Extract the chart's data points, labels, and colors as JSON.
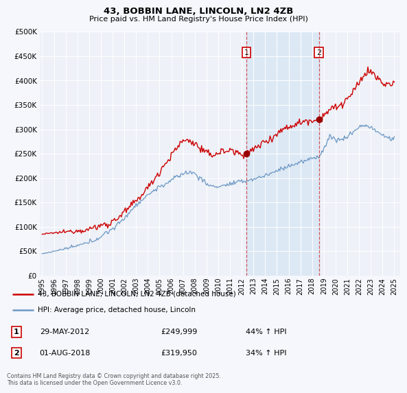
{
  "title_line1": "43, BOBBIN LANE, LINCOLN, LN2 4ZB",
  "title_line2": "Price paid vs. HM Land Registry's House Price Index (HPI)",
  "ytick_values": [
    0,
    50000,
    100000,
    150000,
    200000,
    250000,
    300000,
    350000,
    400000,
    450000,
    500000
  ],
  "ylim": [
    0,
    500000
  ],
  "xlim_start": 1994.8,
  "xlim_end": 2025.5,
  "background_color": "#f5f7fc",
  "plot_bg_color": "#eef1f8",
  "red_color": "#cc0000",
  "blue_color": "#5588bb",
  "shade_color": "#dde8f5",
  "marker1_x": 2012.41,
  "marker1_y": 249999,
  "marker2_x": 2018.58,
  "marker2_y": 319950,
  "marker1_label": "1",
  "marker2_label": "2",
  "marker1_date": "29-MAY-2012",
  "marker1_price": "£249,999",
  "marker1_hpi": "44% ↑ HPI",
  "marker2_date": "01-AUG-2018",
  "marker2_price": "£319,950",
  "marker2_hpi": "34% ↑ HPI",
  "legend_line1": "43, BOBBIN LANE, LINCOLN, LN2 4ZB (detached house)",
  "legend_line2": "HPI: Average price, detached house, Lincoln",
  "footer": "Contains HM Land Registry data © Crown copyright and database right 2025.\nThis data is licensed under the Open Government Licence v3.0.",
  "xticks": [
    1995,
    1996,
    1997,
    1998,
    1999,
    2000,
    2001,
    2002,
    2003,
    2004,
    2005,
    2006,
    2007,
    2008,
    2009,
    2010,
    2011,
    2012,
    2013,
    2014,
    2015,
    2016,
    2017,
    2018,
    2019,
    2020,
    2021,
    2022,
    2023,
    2024,
    2025
  ]
}
